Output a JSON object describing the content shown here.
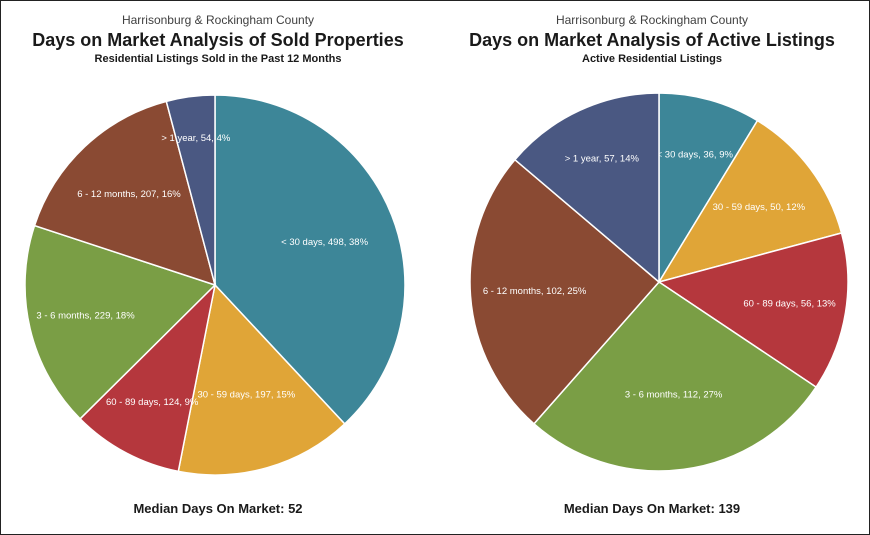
{
  "chart_data": [
    {
      "type": "pie",
      "subtitle_top": "Harrisonburg & Rockingham County",
      "title": "Days on Market Analysis of Sold Properties",
      "description": "Residential Listings Sold in the Past 12 Months",
      "median_label": "Median Days On Market:  52",
      "slices": [
        {
          "label": "< 30 days, 498, 38%",
          "category": "< 30 days",
          "value": 498,
          "percent": 38,
          "color": "#3d8698"
        },
        {
          "label": "30 - 59 days, 197, 15%",
          "category": "30 - 59 days",
          "value": 197,
          "percent": 15,
          "color": "#e0a537"
        },
        {
          "label": "60 - 89 days, 124, 9%",
          "category": "60 - 89 days",
          "value": 124,
          "percent": 9,
          "color": "#b5373d"
        },
        {
          "label": "3 - 6 months, 229, 18%",
          "category": "3 - 6 months",
          "value": 229,
          "percent": 18,
          "color": "#7a9e45"
        },
        {
          "label": "6 - 12 months, 207, 16%",
          "category": "6 - 12 months",
          "value": 207,
          "percent": 16,
          "color": "#8a4a33"
        },
        {
          "label": "> 1 year, 54, 4%",
          "category": "> 1 year",
          "value": 54,
          "percent": 4,
          "color": "#4a5882"
        }
      ]
    },
    {
      "type": "pie",
      "subtitle_top": "Harrisonburg & Rockingham County",
      "title": "Days on Market Analysis of Active Listings",
      "description": "Active Residential Listings",
      "median_label": "Median Days On Market:  139",
      "slices": [
        {
          "label": "< 30 days, 36, 9%",
          "category": "< 30 days",
          "value": 36,
          "percent": 9,
          "color": "#3d8698"
        },
        {
          "label": "30 - 59 days, 50, 12%",
          "category": "30 - 59 days",
          "value": 50,
          "percent": 12,
          "color": "#e0a537"
        },
        {
          "label": "60 - 89 days, 56, 13%",
          "category": "60 - 89 days",
          "value": 56,
          "percent": 13,
          "color": "#b5373d"
        },
        {
          "label": "3 - 6 months, 112, 27%",
          "category": "3 - 6 months",
          "value": 112,
          "percent": 27,
          "color": "#7a9e45"
        },
        {
          "label": "6 - 12 months, 102, 25%",
          "category": "6 - 12 months",
          "value": 102,
          "percent": 25,
          "color": "#8a4a33"
        },
        {
          "label": "> 1 year, 57, 14%",
          "category": "> 1 year",
          "value": 57,
          "percent": 14,
          "color": "#4a5882"
        }
      ]
    }
  ]
}
